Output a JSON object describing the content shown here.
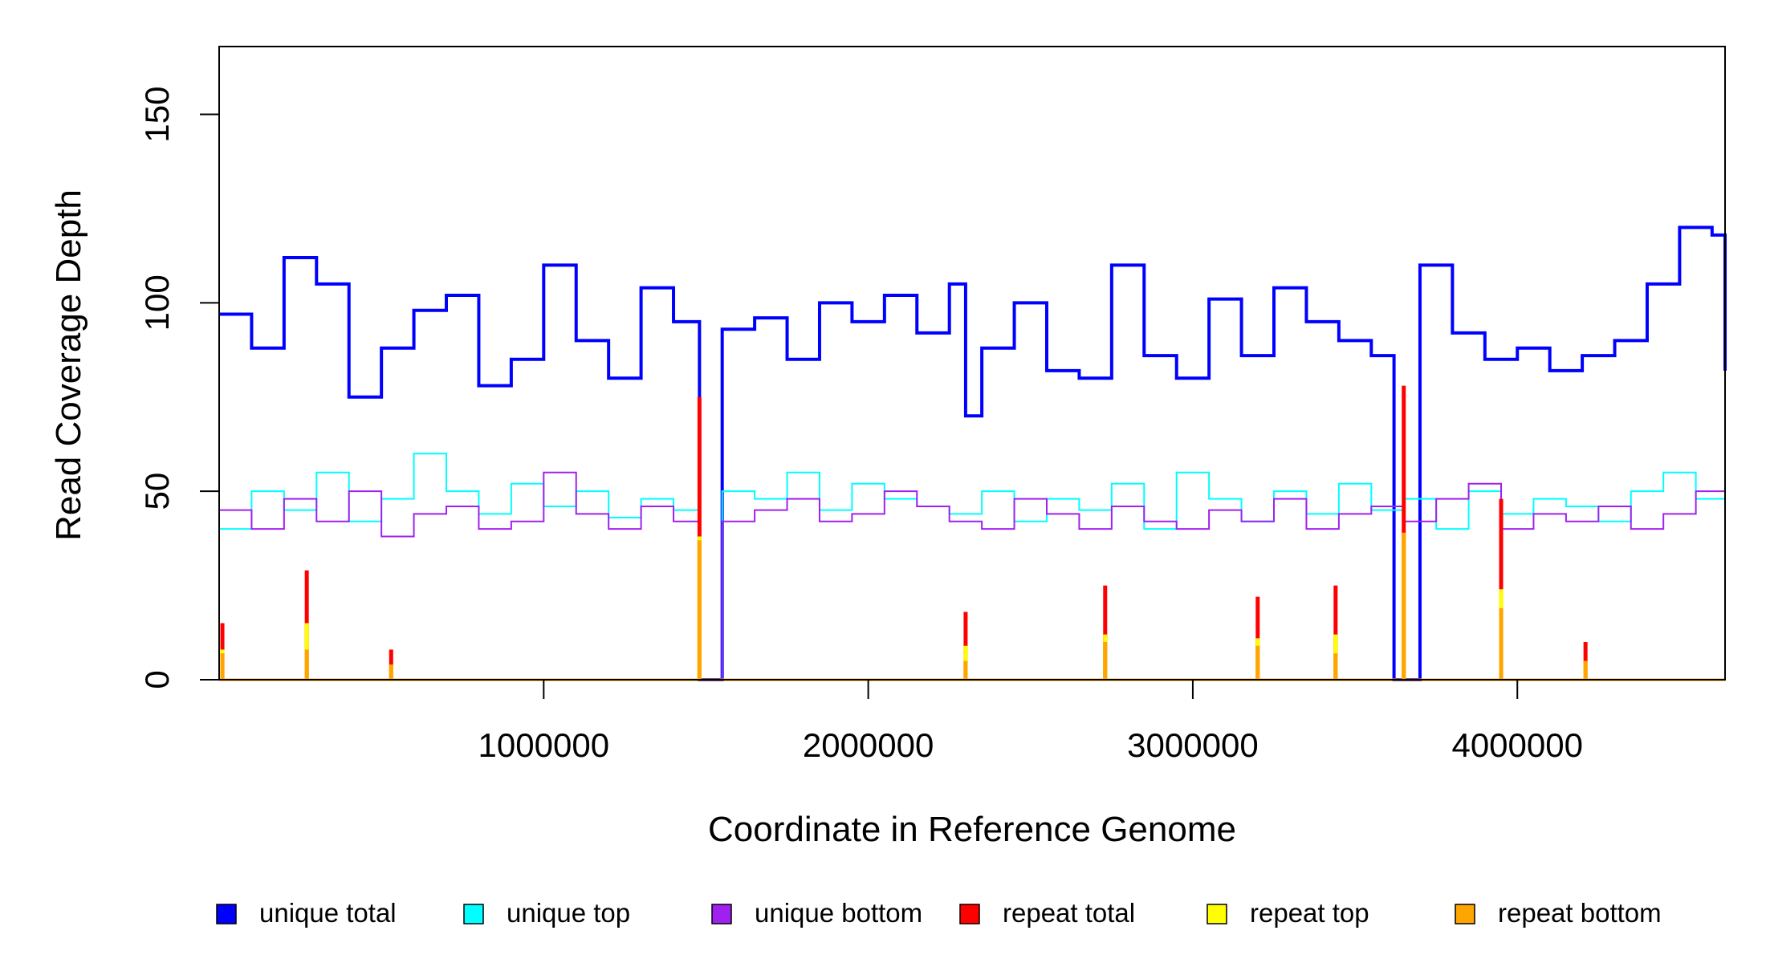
{
  "chart_data": {
    "type": "line",
    "xlabel": "Coordinate in Reference Genome",
    "ylabel": "Read Coverage Depth",
    "xlim": [
      0,
      4640000
    ],
    "ylim": [
      0,
      168
    ],
    "x_ticks": [
      1000000,
      2000000,
      3000000,
      4000000
    ],
    "x_tick_labels": [
      "1000000",
      "2000000",
      "3000000",
      "4000000"
    ],
    "y_ticks": [
      0,
      50,
      100,
      150
    ],
    "y_tick_labels": [
      "0",
      "50",
      "100",
      "150"
    ],
    "grid": false,
    "legend_position": "bottom",
    "colors": {
      "unique_total": "#0000ff",
      "unique_top": "#00ffff",
      "unique_bottom": "#a020f0",
      "repeat_total": "#ff0000",
      "repeat_top": "#ffff00",
      "repeat_bottom": "#ffa500"
    },
    "legend": [
      {
        "key": "unique_total",
        "label": "unique total"
      },
      {
        "key": "unique_top",
        "label": "unique top"
      },
      {
        "key": "unique_bottom",
        "label": "unique bottom"
      },
      {
        "key": "repeat_total",
        "label": "repeat total"
      },
      {
        "key": "repeat_top",
        "label": "repeat top"
      },
      {
        "key": "repeat_bottom",
        "label": "repeat bottom"
      }
    ],
    "series": [
      {
        "name": "unique total",
        "x": [
          0,
          100000,
          200000,
          300000,
          400000,
          500000,
          600000,
          700000,
          800000,
          900000,
          1000000,
          1100000,
          1200000,
          1300000,
          1400000,
          1480000,
          1550000,
          1650000,
          1750000,
          1850000,
          1950000,
          2050000,
          2150000,
          2250000,
          2300000,
          2350000,
          2450000,
          2550000,
          2650000,
          2750000,
          2850000,
          2950000,
          3050000,
          3150000,
          3250000,
          3350000,
          3450000,
          3550000,
          3620000,
          3700000,
          3800000,
          3900000,
          4000000,
          4100000,
          4200000,
          4300000,
          4400000,
          4500000,
          4600000,
          4640000
        ],
        "values": [
          97,
          88,
          112,
          105,
          75,
          88,
          98,
          102,
          78,
          85,
          110,
          90,
          80,
          104,
          95,
          0,
          93,
          96,
          85,
          100,
          95,
          102,
          92,
          105,
          70,
          88,
          100,
          82,
          80,
          110,
          86,
          80,
          101,
          86,
          104,
          95,
          90,
          86,
          0,
          110,
          92,
          85,
          88,
          82,
          86,
          90,
          105,
          120,
          118,
          82
        ]
      },
      {
        "name": "unique top",
        "x": [
          0,
          100000,
          200000,
          300000,
          400000,
          500000,
          600000,
          700000,
          800000,
          900000,
          1000000,
          1100000,
          1200000,
          1300000,
          1400000,
          1480000,
          1550000,
          1650000,
          1750000,
          1850000,
          1950000,
          2050000,
          2150000,
          2250000,
          2350000,
          2450000,
          2550000,
          2650000,
          2750000,
          2850000,
          2950000,
          3050000,
          3150000,
          3250000,
          3350000,
          3450000,
          3550000,
          3650000,
          3750000,
          3850000,
          3950000,
          4050000,
          4150000,
          4250000,
          4350000,
          4450000,
          4550000,
          4640000
        ],
        "values": [
          40,
          50,
          45,
          55,
          42,
          48,
          60,
          50,
          44,
          52,
          46,
          50,
          43,
          48,
          45,
          0,
          50,
          48,
          55,
          45,
          52,
          48,
          46,
          44,
          50,
          42,
          48,
          45,
          52,
          40,
          55,
          48,
          42,
          50,
          44,
          52,
          45,
          48,
          40,
          50,
          44,
          48,
          46,
          42,
          50,
          55,
          48,
          52
        ]
      },
      {
        "name": "unique bottom",
        "x": [
          0,
          100000,
          200000,
          300000,
          400000,
          500000,
          600000,
          700000,
          800000,
          900000,
          1000000,
          1100000,
          1200000,
          1300000,
          1400000,
          1480000,
          1550000,
          1650000,
          1750000,
          1850000,
          1950000,
          2050000,
          2150000,
          2250000,
          2350000,
          2450000,
          2550000,
          2650000,
          2750000,
          2850000,
          2950000,
          3050000,
          3150000,
          3250000,
          3350000,
          3450000,
          3550000,
          3650000,
          3750000,
          3850000,
          3950000,
          4050000,
          4150000,
          4250000,
          4350000,
          4450000,
          4550000,
          4640000
        ],
        "values": [
          45,
          40,
          48,
          42,
          50,
          38,
          44,
          46,
          40,
          42,
          55,
          44,
          40,
          46,
          42,
          0,
          42,
          45,
          48,
          42,
          44,
          50,
          46,
          42,
          40,
          48,
          44,
          40,
          46,
          42,
          40,
          45,
          42,
          48,
          40,
          44,
          46,
          42,
          48,
          52,
          40,
          44,
          42,
          46,
          40,
          44,
          50,
          42
        ]
      },
      {
        "name": "repeat total",
        "x": [
          10000,
          270000,
          530000,
          1480000,
          2300000,
          2730000,
          3200000,
          3440000,
          3650000,
          3950000,
          4210000
        ],
        "values": [
          15,
          29,
          8,
          75,
          18,
          25,
          22,
          25,
          78,
          48,
          10
        ]
      },
      {
        "name": "repeat top",
        "x": [
          10000,
          270000,
          530000,
          1480000,
          2300000,
          2730000,
          3200000,
          3440000,
          3650000,
          3950000,
          4210000
        ],
        "values": [
          8,
          15,
          4,
          38,
          9,
          12,
          11,
          12,
          39,
          24,
          5
        ]
      },
      {
        "name": "repeat bottom",
        "x": [
          10000,
          270000,
          530000,
          1480000,
          2300000,
          2730000,
          3200000,
          3440000,
          3650000,
          3950000,
          4210000
        ],
        "values": [
          7,
          8,
          4,
          37,
          5,
          10,
          9,
          7,
          39,
          19,
          5
        ]
      }
    ]
  }
}
